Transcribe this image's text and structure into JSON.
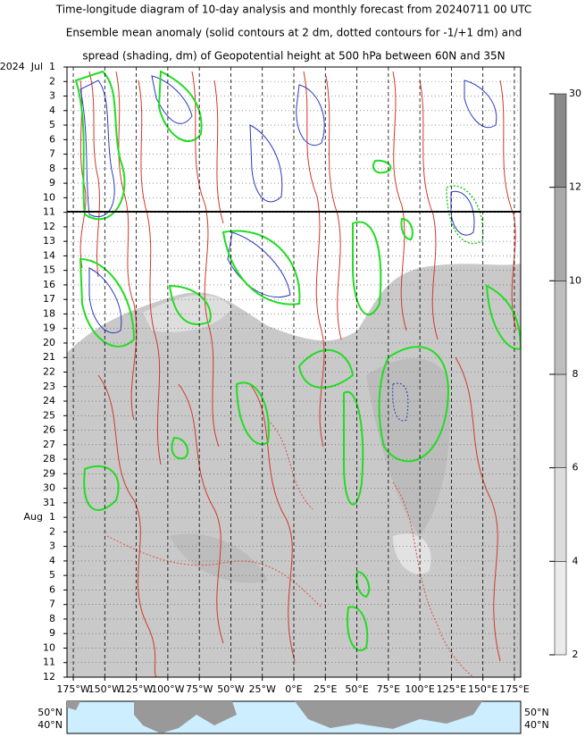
{
  "chart_data": {
    "type": "hovmoller",
    "title": [
      "Time-longitude diagram of 10-day analysis and monthly forecast from 20240711 00 UTC",
      "Ensemble mean anomaly (solid contours at 2 dm, dotted contours for -1/+1 dm) and",
      "spread (shading, dm) of Geopotential height at 500 hPa between 60N and 35N"
    ],
    "categories": [
      "2024  Jul  1",
      "2",
      "3",
      "4",
      "5",
      "6",
      "7",
      "8",
      "9",
      "10",
      "11",
      "12",
      "13",
      "14",
      "15",
      "16",
      "17",
      "18",
      "19",
      "20",
      "21",
      "22",
      "23",
      "24",
      "25",
      "26",
      "27",
      "28",
      "29",
      "30",
      "31",
      "Aug  1",
      "2",
      "3",
      "4",
      "5",
      "6",
      "7",
      "8",
      "9",
      "10",
      "11",
      "12"
    ],
    "category_colors": [
      "#000",
      "#000",
      "#000",
      "#000",
      "#000",
      "#000",
      "#d00",
      "#000",
      "#000",
      "#000",
      "#000",
      "#000",
      "#000",
      "#d00",
      "#000",
      "#000",
      "#000",
      "#000",
      "#000",
      "#000",
      "#d00",
      "#000",
      "#000",
      "#000",
      "#000",
      "#000",
      "#000",
      "#d00",
      "#000",
      "#000",
      "#000",
      "#000",
      "#000",
      "#000",
      "#d00",
      "#000",
      "#000",
      "#000",
      "#000",
      "#000",
      "#000",
      "#d00",
      "#000"
    ],
    "xlim": [
      -180,
      180
    ],
    "xticks": [
      {
        "value": -175,
        "label": "175°W"
      },
      {
        "value": -150,
        "label": "150°W"
      },
      {
        "value": -125,
        "label": "125°W"
      },
      {
        "value": -100,
        "label": "100°W"
      },
      {
        "value": -75,
        "label": "75°W"
      },
      {
        "value": -50,
        "label": "50°W"
      },
      {
        "value": -25,
        "label": "25°W"
      },
      {
        "value": 0,
        "label": "0°E"
      },
      {
        "value": 25,
        "label": "25°E"
      },
      {
        "value": 50,
        "label": "50°E"
      },
      {
        "value": 75,
        "label": "75°E"
      },
      {
        "value": 100,
        "label": "100°E"
      },
      {
        "value": 125,
        "label": "125°E"
      },
      {
        "value": 150,
        "label": "150°E"
      },
      {
        "value": 175,
        "label": "175°E"
      }
    ],
    "grid": true,
    "colorbar": {
      "levels": [
        2,
        4,
        6,
        8,
        10,
        12,
        30
      ],
      "colors": [
        "#ebebeb",
        "#dcdcdc",
        "#cdcdcd",
        "#bebebe",
        "#a9a9a9",
        "#8a8a8a"
      ]
    },
    "map_labels": [
      "50°N",
      "40°N"
    ]
  }
}
